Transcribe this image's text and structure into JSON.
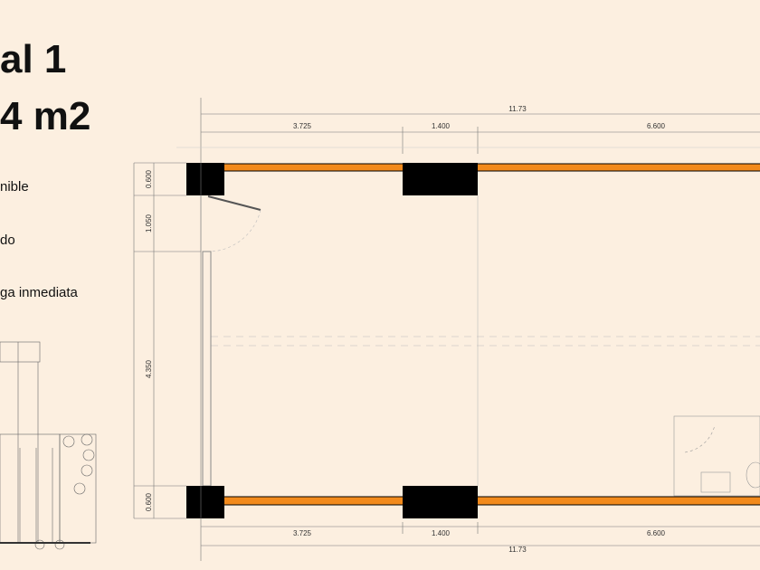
{
  "header": {
    "title_line1": "al 1",
    "title_line2": "4 m2"
  },
  "features": [
    "nible",
    "do",
    "ga inmediata"
  ],
  "dimensions": {
    "top_total": "11.73",
    "top": [
      "3.725",
      "1.400",
      "6.600"
    ],
    "left": [
      "0.600",
      "1.050",
      "4.350",
      "0.600"
    ],
    "bottom": [
      "3.725",
      "1.400",
      "6.600"
    ],
    "bottom_total": "11.73"
  }
}
